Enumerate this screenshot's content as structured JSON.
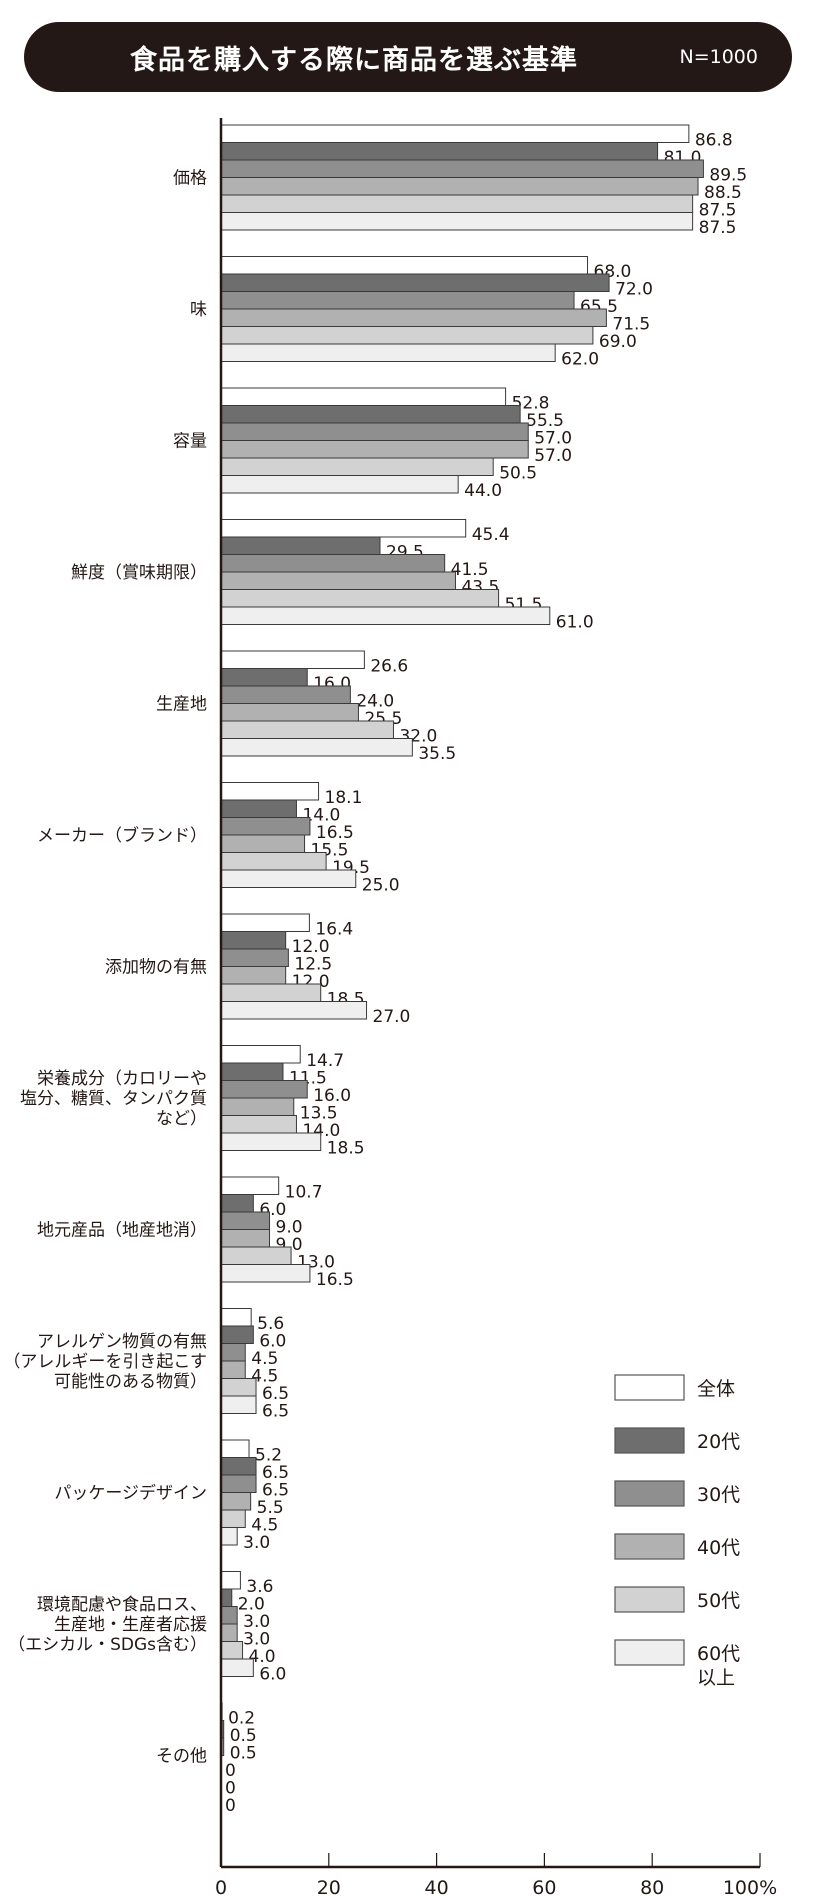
{
  "chart_data": {
    "type": "bar",
    "orientation": "horizontal",
    "title": "食品を購入する際に商品を選ぶ基準",
    "sample_size": "N=1000",
    "categories": [
      [
        "価格"
      ],
      [
        "味"
      ],
      [
        "容量"
      ],
      [
        "鮮度（賞味期限）"
      ],
      [
        "生産地"
      ],
      [
        "メーカー（ブランド）"
      ],
      [
        "添加物の有無"
      ],
      [
        "栄養成分（カロリーや",
        "塩分、糖質、タンパク質",
        "など）"
      ],
      [
        "地元産品（地産地消）"
      ],
      [
        "アレルゲン物質の有無",
        "（アレルギーを引き起こす",
        "可能性のある物質）"
      ],
      [
        "パッケージデザイン"
      ],
      [
        "環境配慮や食品ロス、",
        "生産地・生産者応援",
        "（エシカル・SDGs含む）"
      ],
      [
        "その他"
      ]
    ],
    "series": [
      {
        "name": "全体",
        "color": "#ffffff",
        "values": [
          86.8,
          68.0,
          52.8,
          45.4,
          26.6,
          18.1,
          16.4,
          14.7,
          10.7,
          5.6,
          5.2,
          3.6,
          0.2
        ]
      },
      {
        "name": "20代",
        "color": "#6e6e6e",
        "values": [
          81.0,
          72.0,
          55.5,
          29.5,
          16.0,
          14.0,
          12.0,
          11.5,
          6.0,
          6.0,
          6.5,
          2.0,
          0.5
        ]
      },
      {
        "name": "30代",
        "color": "#8f8f8f",
        "values": [
          89.5,
          65.5,
          57.0,
          41.5,
          24.0,
          16.5,
          12.5,
          16.0,
          9.0,
          4.5,
          6.5,
          3.0,
          0.5
        ]
      },
      {
        "name": "40代",
        "color": "#b1b1b1",
        "values": [
          88.5,
          71.5,
          57.0,
          43.5,
          25.5,
          15.5,
          12.0,
          13.5,
          9.0,
          4.5,
          5.5,
          3.0,
          0
        ]
      },
      {
        "name": "50代",
        "color": "#d2d2d2",
        "values": [
          87.5,
          69.0,
          50.5,
          51.5,
          32.0,
          19.5,
          18.5,
          14.0,
          13.0,
          6.5,
          4.5,
          4.0,
          0
        ]
      },
      {
        "name": "60代\n以上",
        "color": "#efefef",
        "values": [
          87.5,
          62.0,
          44.0,
          61.0,
          35.5,
          25.0,
          27.0,
          18.5,
          16.5,
          6.5,
          3.0,
          6.0,
          0
        ]
      }
    ],
    "value_labels": [
      [
        "86.8",
        "68.0",
        "52.8",
        "45.4",
        "26.6",
        "18.1",
        "16.4",
        "14.7",
        "10.7",
        "5.6",
        "5.2",
        "3.6",
        "0.2"
      ],
      [
        "81.0",
        "72.0",
        "55.5",
        "29.5",
        "16.0",
        "14.0",
        "12.0",
        "11.5",
        "6.0",
        "6.0",
        "6.5",
        "2.0",
        "0.5"
      ],
      [
        "89.5",
        "65.5",
        "57.0",
        "41.5",
        "24.0",
        "16.5",
        "12.5",
        "16.0",
        "9.0",
        "4.5",
        "6.5",
        "3.0",
        "0.5"
      ],
      [
        "88.5",
        "71.5",
        "57.0",
        "43.5",
        "25.5",
        "15.5",
        "12.0",
        "13.5",
        "9.0",
        "4.5",
        "5.5",
        "3.0",
        "0"
      ],
      [
        "87.5",
        "69.0",
        "50.5",
        "51.5",
        "32.0",
        "19.5",
        "18.5",
        "14.0",
        "13.0",
        "6.5",
        "4.5",
        "4.0",
        "0"
      ],
      [
        "87.5",
        "62.0",
        "44.0",
        "61.0",
        "35.5",
        "25.0",
        "27.0",
        "18.5",
        "16.5",
        "6.5",
        "3.0",
        "6.0",
        "0"
      ]
    ],
    "xlim": [
      0,
      100
    ],
    "xticks": [
      "0",
      "20",
      "40",
      "60",
      "80",
      "100%"
    ],
    "grid": false,
    "legend_position": "bottom-right"
  }
}
